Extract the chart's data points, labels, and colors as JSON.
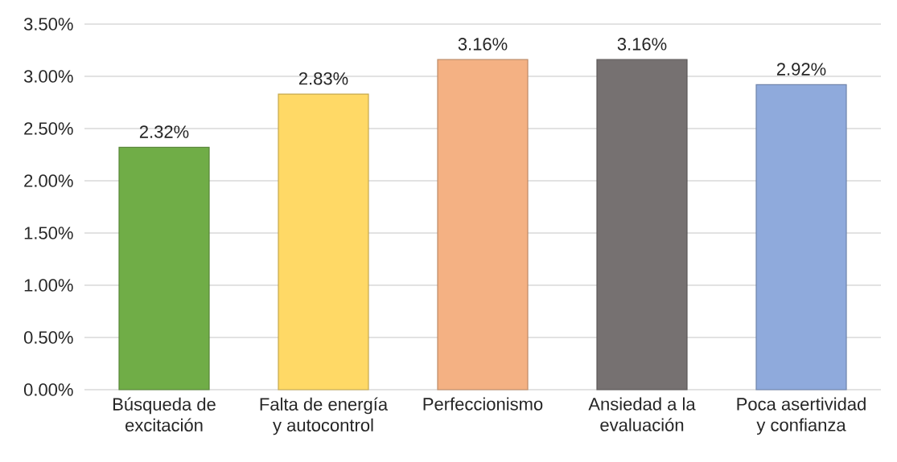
{
  "chart_data": {
    "type": "bar",
    "categories": [
      "Búsqueda de excitación",
      "Falta de energía y autocontrol",
      "Perfeccionismo",
      "Ansiedad a la evaluación",
      "Poca asertividad y confianza"
    ],
    "values": [
      2.32,
      2.83,
      3.16,
      3.16,
      2.92
    ],
    "colors": [
      "#70ad47",
      "#ffd966",
      "#f4b183",
      "#767171",
      "#8faadc"
    ],
    "value_labels": [
      "2.32%",
      "2.83%",
      "3.16%",
      "3.16%",
      "2.92%"
    ],
    "ylim": [
      0,
      3.5
    ],
    "yticks": [
      {
        "value": 0,
        "label": "0.00%"
      },
      {
        "value": 0.5,
        "label": "0.50%"
      },
      {
        "value": 1,
        "label": "1.00%"
      },
      {
        "value": 1.5,
        "label": "1.50%"
      },
      {
        "value": 2,
        "label": "2.00%"
      },
      {
        "value": 2.5,
        "label": "2.50%"
      },
      {
        "value": 3,
        "label": "3.00%"
      },
      {
        "value": 3.5,
        "label": "3.50%"
      }
    ],
    "grid": "y"
  }
}
